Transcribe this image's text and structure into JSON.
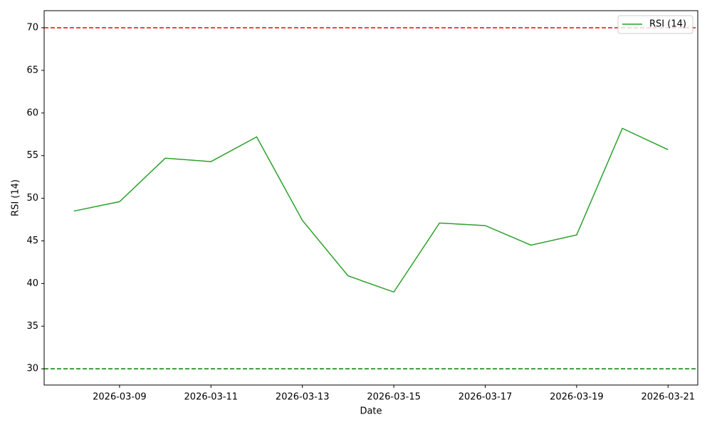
{
  "chart_data": {
    "type": "line",
    "x": [
      "2026-03-08",
      "2026-03-09",
      "2026-03-10",
      "2026-03-11",
      "2026-03-12",
      "2026-03-13",
      "2026-03-14",
      "2026-03-15",
      "2026-03-16",
      "2026-03-17",
      "2026-03-18",
      "2026-03-19",
      "2026-03-20",
      "2026-03-21"
    ],
    "series": [
      {
        "name": "RSI (14)",
        "color": "#2ca02c",
        "values": [
          48.5,
          49.6,
          54.7,
          54.3,
          57.2,
          47.4,
          40.9,
          39.0,
          47.1,
          46.8,
          44.5,
          45.7,
          58.2,
          55.7
        ]
      }
    ],
    "hlines": [
      {
        "value": 70,
        "color": "#ff0000"
      },
      {
        "value": 30,
        "color": "#008000"
      }
    ],
    "xlabel": "Date",
    "ylabel": "RSI (14)",
    "ylim": [
      28.1,
      72.0
    ],
    "yticks": [
      30,
      35,
      40,
      45,
      50,
      55,
      60,
      65,
      70
    ],
    "xticks": [
      "2026-03-09",
      "2026-03-11",
      "2026-03-13",
      "2026-03-15",
      "2026-03-17",
      "2026-03-19",
      "2026-03-21"
    ],
    "legend": "upper right"
  }
}
